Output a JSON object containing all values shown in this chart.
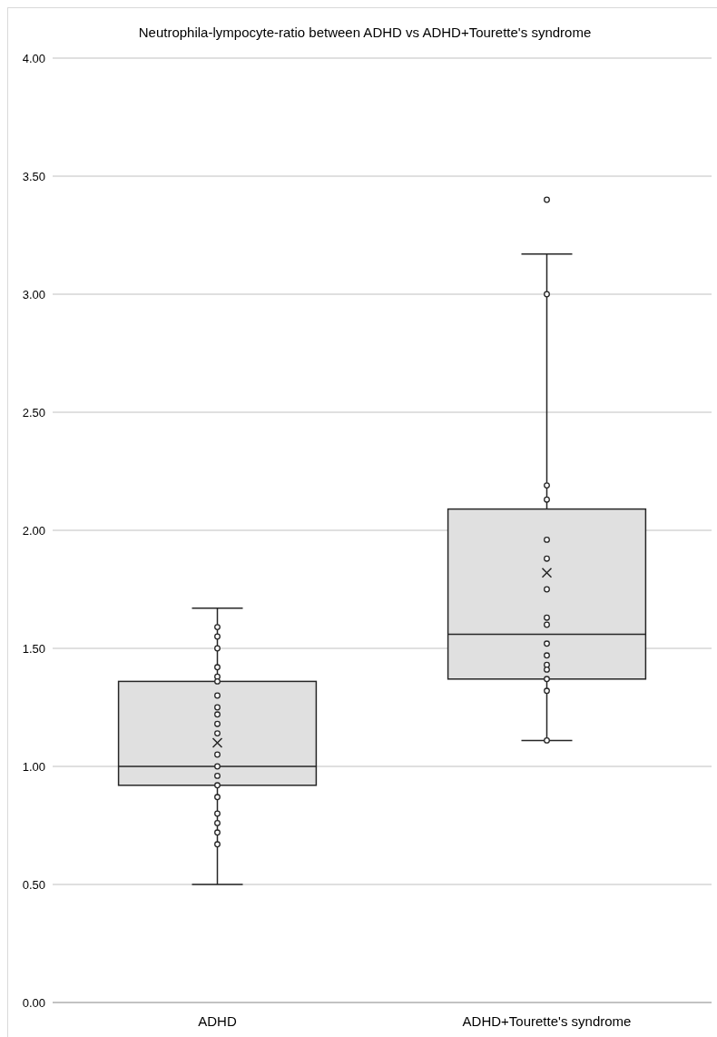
{
  "chart_data": {
    "type": "box",
    "title": "Neutrophila-lympocyte-ratio between ADHD vs ADHD+Tourette's syndrome",
    "categories": [
      "ADHD",
      "ADHD+Tourette's syndrome"
    ],
    "boxes": [
      {
        "low": 0.5,
        "q1": 0.92,
        "median": 1.0,
        "q3": 1.36,
        "high": 1.67,
        "mean": 1.1
      },
      {
        "low": 1.11,
        "q1": 1.37,
        "median": 1.56,
        "q3": 2.09,
        "high": 3.17,
        "mean": 1.82,
        "outliers": [
          3.4
        ]
      }
    ],
    "color": "#e0e0e0",
    "series": [
      {
        "type": "scatter",
        "color": "#262626",
        "x": [
          "ADHD",
          "ADHD",
          "ADHD",
          "ADHD",
          "ADHD",
          "ADHD",
          "ADHD",
          "ADHD",
          "ADHD",
          "ADHD",
          "ADHD",
          "ADHD",
          "ADHD",
          "ADHD",
          "ADHD",
          "ADHD",
          "ADHD",
          "ADHD",
          "ADHD",
          "ADHD",
          "ADHD+Tourette's syndrome",
          "ADHD+Tourette's syndrome",
          "ADHD+Tourette's syndrome",
          "ADHD+Tourette's syndrome",
          "ADHD+Tourette's syndrome",
          "ADHD+Tourette's syndrome",
          "ADHD+Tourette's syndrome",
          "ADHD+Tourette's syndrome",
          "ADHD+Tourette's syndrome",
          "ADHD+Tourette's syndrome",
          "ADHD+Tourette's syndrome",
          "ADHD+Tourette's syndrome",
          "ADHD+Tourette's syndrome",
          "ADHD+Tourette's syndrome",
          "ADHD+Tourette's syndrome"
        ],
        "values": [
          1.59,
          1.55,
          1.5,
          1.42,
          1.38,
          1.36,
          1.3,
          1.25,
          1.22,
          1.18,
          1.14,
          1.05,
          1.0,
          0.96,
          0.92,
          0.87,
          0.8,
          0.76,
          0.72,
          0.67,
          3.0,
          2.19,
          2.13,
          1.96,
          1.88,
          1.75,
          1.63,
          1.6,
          1.52,
          1.47,
          1.43,
          1.41,
          1.37,
          1.32,
          1.11
        ]
      }
    ],
    "marker": "circle",
    "ylim": [
      0,
      4
    ],
    "yticks": [
      {
        "value": 0,
        "label": "0.00"
      },
      {
        "value": 0.5,
        "label": "0.50"
      },
      {
        "value": 1,
        "label": "1.00"
      },
      {
        "value": 1.5,
        "label": "1.50"
      },
      {
        "value": 2,
        "label": "2.00"
      },
      {
        "value": 2.5,
        "label": "2.50"
      },
      {
        "value": 3,
        "label": "3.00"
      },
      {
        "value": 3.5,
        "label": "3.50"
      },
      {
        "value": 4,
        "label": "4.00"
      }
    ],
    "grid": "y"
  }
}
